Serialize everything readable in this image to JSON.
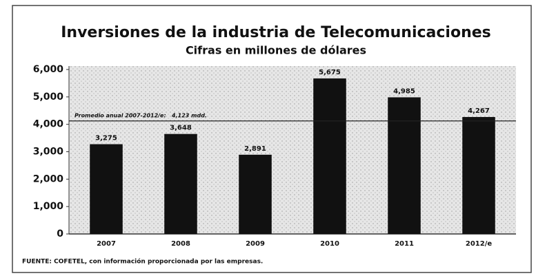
{
  "chart_data": {
    "type": "bar",
    "title": "Inversiones de la industria de Telecomunicaciones",
    "subtitle": "Cifras en millones de dólares",
    "categories": [
      "2007",
      "2008",
      "2009",
      "2010",
      "2011",
      "2012/e"
    ],
    "values": [
      3275,
      3648,
      2891,
      5675,
      4985,
      4267
    ],
    "value_labels": [
      "3,275",
      "3,648",
      "2,891",
      "5,675",
      "4,985",
      "4,267"
    ],
    "color": "#111111",
    "ylim": [
      0,
      6000
    ],
    "yticks": [
      0,
      {
        "value": 1000,
        "label": "1,000"
      },
      {
        "value": 2000,
        "label": "2,000"
      },
      {
        "value": 3000,
        "label": "3,000"
      },
      {
        "value": 4000,
        "label": "4,000"
      },
      {
        "value": 5000,
        "label": "5,000"
      },
      {
        "value": 6000,
        "label": "6,000"
      }
    ],
    "grid": false,
    "reference_line": {
      "value": 4123,
      "label": "Promedio anual 2007-2012/e:   4,123 mdd."
    },
    "source": "FUENTE: COFETEL, con información proporcionada por las empresas."
  }
}
